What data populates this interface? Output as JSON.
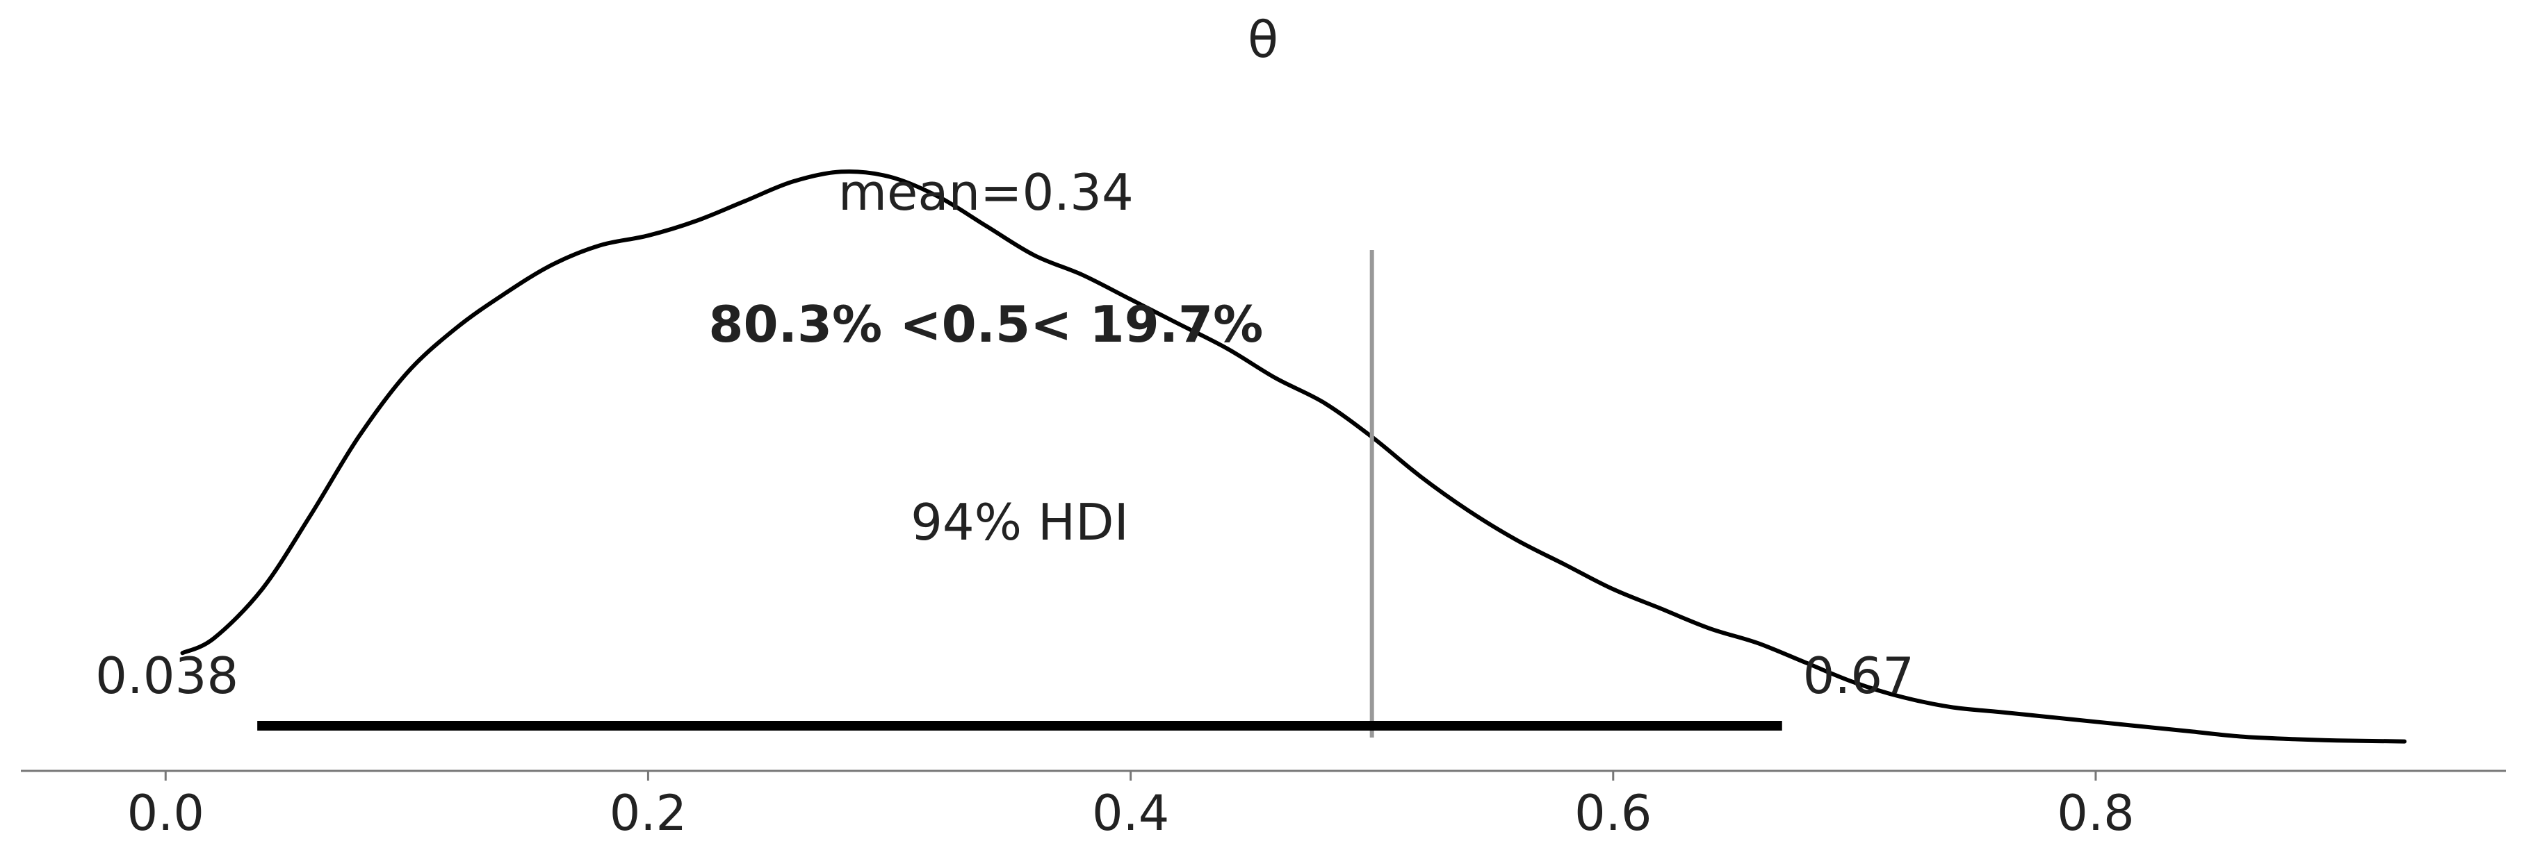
{
  "chart_data": {
    "type": "area",
    "title": "θ",
    "xlabel": "",
    "ylabel": "",
    "xlim": [
      -0.06,
      0.97
    ],
    "xticks": [
      0.0,
      0.2,
      0.4,
      0.6,
      0.8
    ],
    "xtick_labels": [
      "0.0",
      "0.2",
      "0.4",
      "0.6",
      "0.8"
    ],
    "grid": false,
    "density": {
      "x": [
        0.007,
        0.02,
        0.04,
        0.06,
        0.08,
        0.1,
        0.12,
        0.14,
        0.16,
        0.18,
        0.2,
        0.22,
        0.24,
        0.26,
        0.28,
        0.3,
        0.32,
        0.34,
        0.36,
        0.38,
        0.4,
        0.42,
        0.44,
        0.46,
        0.48,
        0.5,
        0.52,
        0.54,
        0.56,
        0.58,
        0.6,
        0.62,
        0.64,
        0.66,
        0.68,
        0.7,
        0.72,
        0.74,
        0.76,
        0.78,
        0.8,
        0.82,
        0.84,
        0.86,
        0.88,
        0.9,
        0.928
      ],
      "y": [
        0.19,
        0.22,
        0.32,
        0.47,
        0.63,
        0.76,
        0.85,
        0.92,
        0.98,
        1.02,
        1.04,
        1.07,
        1.11,
        1.15,
        1.17,
        1.16,
        1.12,
        1.06,
        1.0,
        0.96,
        0.91,
        0.86,
        0.81,
        0.75,
        0.7,
        0.63,
        0.55,
        0.48,
        0.42,
        0.37,
        0.32,
        0.28,
        0.24,
        0.21,
        0.17,
        0.13,
        0.1,
        0.08,
        0.07,
        0.06,
        0.05,
        0.04,
        0.03,
        0.02,
        0.015,
        0.012,
        0.01
      ],
      "ylim": [
        -0.05,
        1.35
      ]
    },
    "mean": {
      "value": 0.34,
      "label": "mean=0.34"
    },
    "reference": {
      "value": 0.5,
      "label": "80.3% <0.5< 19.7%",
      "below_pct": 80.3,
      "above_pct": 19.7
    },
    "hdi": {
      "prob_label": "94% HDI",
      "low": 0.038,
      "high": 0.67,
      "low_label": "0.038",
      "high_label": "0.67"
    },
    "colors": {
      "density": "#000000",
      "hdi_bar": "#000000",
      "reference_line": "#999999",
      "reference_text": "#666666",
      "axis": "#777777",
      "text": "#222222"
    }
  }
}
